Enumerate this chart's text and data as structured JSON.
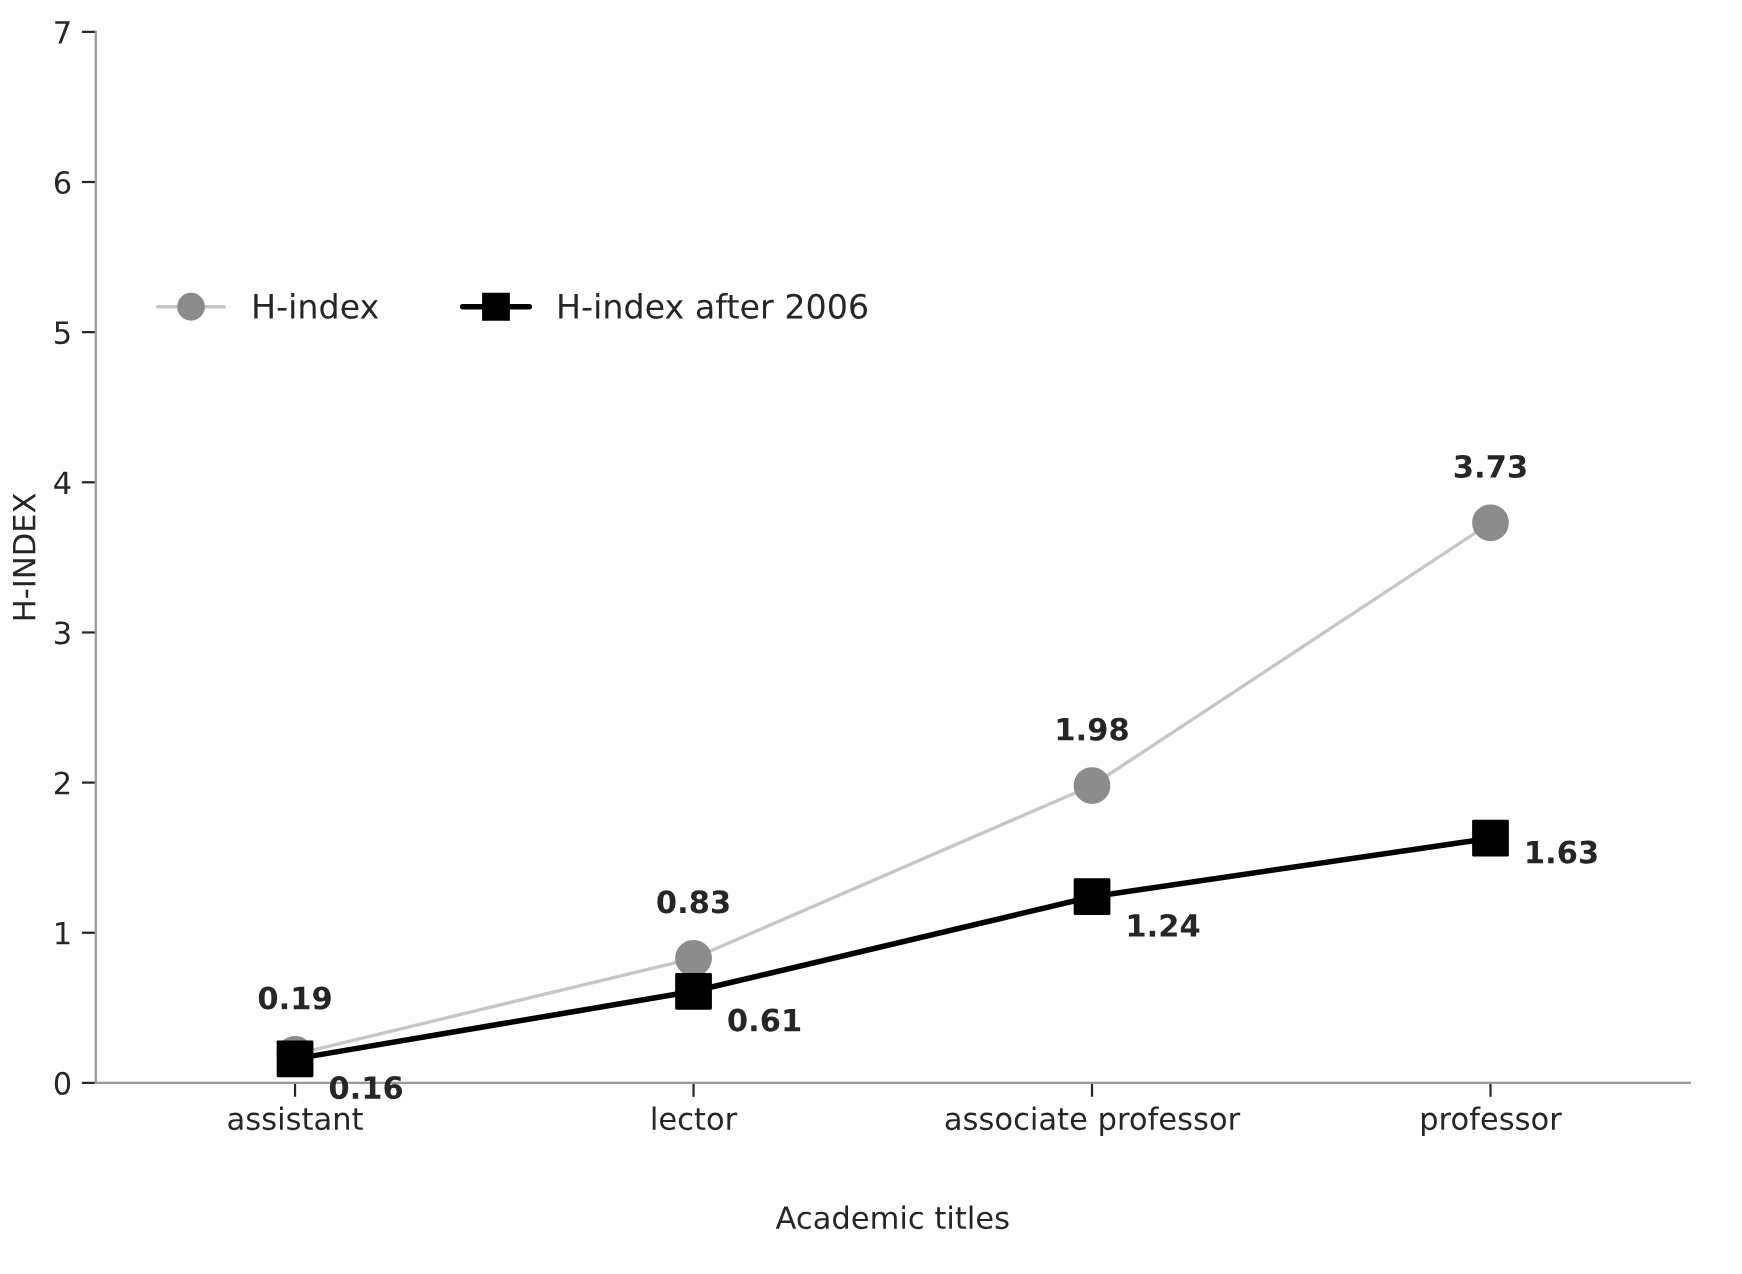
{
  "chart_data": {
    "type": "line",
    "xlabel": "Academic titles",
    "ylabel": "H-INDEX",
    "categories": [
      "assistant",
      "lector",
      "associate professor",
      "professor"
    ],
    "series": [
      {
        "name": "H-index",
        "color": "#8c8c8c",
        "marker": "circle",
        "values": [
          0.19,
          0.83,
          1.98,
          3.73
        ]
      },
      {
        "name": "H-index after 2006",
        "color": "#000000",
        "marker": "square",
        "values": [
          0.16,
          0.61,
          1.24,
          1.63
        ]
      }
    ],
    "ylim": [
      0,
      7
    ],
    "yticks": [
      0,
      1,
      2,
      3,
      4,
      5,
      6,
      7
    ],
    "grid": false,
    "legend": "top left",
    "data_labels": true
  }
}
